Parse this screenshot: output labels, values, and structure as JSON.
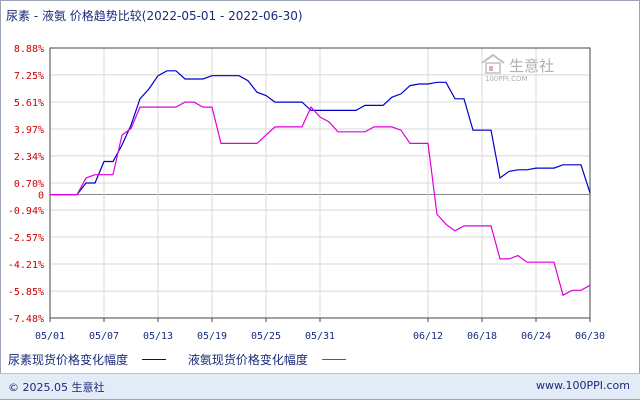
{
  "title": "尿素 - 液氨 价格趋势比较(2022-05-01 - 2022-06-30)",
  "watermark": {
    "text": "生意社",
    "sub": "100PPI.COM"
  },
  "footer": {
    "copyright": "© 2025.05 生意社",
    "site": "www.100PPI.com"
  },
  "colors": {
    "series1": "#0000cc",
    "series2": "#dd00dd",
    "grid": "#d8d8d8",
    "axis": "#444444",
    "ytick": "#cc0000"
  },
  "chart_data": {
    "type": "line",
    "title": "尿素 - 液氨 价格趋势比较(2022-05-01 - 2022-06-30)",
    "ylim": [
      -7.48,
      8.88
    ],
    "yticks": [
      "8.88%",
      "7.25%",
      "5.61%",
      "3.97%",
      "2.34%",
      "0.70%",
      "0",
      "-0.94%",
      "-2.57%",
      "-4.21%",
      "-5.85%",
      "-7.48%"
    ],
    "ytick_values": [
      8.88,
      7.25,
      5.61,
      3.97,
      2.34,
      0.7,
      0,
      -0.94,
      -2.57,
      -4.21,
      -5.85,
      -7.48
    ],
    "xticks": [
      "05/01",
      "05/07",
      "05/13",
      "05/19",
      "05/25",
      "05/31",
      "06/12",
      "06/18",
      "06/24",
      "06/30"
    ],
    "xtick_days": [
      0,
      6,
      12,
      18,
      24,
      30,
      42,
      48,
      54,
      60
    ],
    "grid": true,
    "legend_position": "bottom",
    "series": [
      {
        "name": "尿素现货价格变化幅度",
        "color": "#0000cc",
        "points": [
          [
            0,
            0
          ],
          [
            3,
            0
          ],
          [
            4,
            0.7
          ],
          [
            5,
            0.7
          ],
          [
            6,
            2.0
          ],
          [
            7,
            2.0
          ],
          [
            8,
            3.0
          ],
          [
            9,
            4.2
          ],
          [
            10,
            5.8
          ],
          [
            11,
            6.4
          ],
          [
            12,
            7.2
          ],
          [
            13,
            7.5
          ],
          [
            14,
            7.5
          ],
          [
            15,
            7.0
          ],
          [
            16,
            7.0
          ],
          [
            17,
            7.0
          ],
          [
            18,
            7.2
          ],
          [
            19,
            7.2
          ],
          [
            20,
            7.2
          ],
          [
            21,
            7.2
          ],
          [
            22,
            6.9
          ],
          [
            23,
            6.2
          ],
          [
            24,
            6.0
          ],
          [
            25,
            5.6
          ],
          [
            26,
            5.6
          ],
          [
            27,
            5.6
          ],
          [
            28,
            5.6
          ],
          [
            29,
            5.1
          ],
          [
            30,
            5.1
          ],
          [
            31,
            5.1
          ],
          [
            32,
            5.1
          ],
          [
            33,
            5.1
          ],
          [
            34,
            5.1
          ],
          [
            35,
            5.4
          ],
          [
            36,
            5.4
          ],
          [
            37,
            5.4
          ],
          [
            38,
            5.9
          ],
          [
            39,
            6.1
          ],
          [
            40,
            6.6
          ],
          [
            41,
            6.7
          ],
          [
            42,
            6.7
          ],
          [
            43,
            6.8
          ],
          [
            44,
            6.8
          ],
          [
            45,
            5.8
          ],
          [
            46,
            5.8
          ],
          [
            47,
            3.9
          ],
          [
            48,
            3.9
          ],
          [
            49,
            3.9
          ],
          [
            50,
            1.0
          ],
          [
            51,
            1.4
          ],
          [
            52,
            1.5
          ],
          [
            53,
            1.5
          ],
          [
            54,
            1.6
          ],
          [
            55,
            1.6
          ],
          [
            56,
            1.6
          ],
          [
            57,
            1.8
          ],
          [
            58,
            1.8
          ],
          [
            59,
            1.8
          ],
          [
            60,
            0.1
          ]
        ]
      },
      {
        "name": "液氨现货价格变化幅度",
        "color": "#dd00dd",
        "points": [
          [
            0,
            0
          ],
          [
            3,
            0
          ],
          [
            4,
            1.0
          ],
          [
            5,
            1.2
          ],
          [
            6,
            1.2
          ],
          [
            7,
            1.2
          ],
          [
            8,
            3.6
          ],
          [
            9,
            4.0
          ],
          [
            10,
            5.3
          ],
          [
            11,
            5.3
          ],
          [
            12,
            5.3
          ],
          [
            13,
            5.3
          ],
          [
            14,
            5.3
          ],
          [
            15,
            5.6
          ],
          [
            16,
            5.6
          ],
          [
            17,
            5.3
          ],
          [
            18,
            5.3
          ],
          [
            19,
            3.1
          ],
          [
            20,
            3.1
          ],
          [
            21,
            3.1
          ],
          [
            22,
            3.1
          ],
          [
            23,
            3.1
          ],
          [
            24,
            3.6
          ],
          [
            25,
            4.1
          ],
          [
            26,
            4.1
          ],
          [
            27,
            4.1
          ],
          [
            28,
            4.1
          ],
          [
            29,
            5.3
          ],
          [
            30,
            4.7
          ],
          [
            31,
            4.4
          ],
          [
            32,
            3.8
          ],
          [
            33,
            3.8
          ],
          [
            34,
            3.8
          ],
          [
            35,
            3.8
          ],
          [
            36,
            4.1
          ],
          [
            37,
            4.1
          ],
          [
            38,
            4.1
          ],
          [
            39,
            3.9
          ],
          [
            40,
            3.1
          ],
          [
            41,
            3.1
          ],
          [
            42,
            3.1
          ],
          [
            43,
            -1.2
          ],
          [
            44,
            -1.8
          ],
          [
            45,
            -2.2
          ],
          [
            46,
            -1.9
          ],
          [
            47,
            -1.9
          ],
          [
            48,
            -1.9
          ],
          [
            49,
            -1.9
          ],
          [
            50,
            -3.9
          ],
          [
            51,
            -3.9
          ],
          [
            52,
            -3.7
          ],
          [
            53,
            -4.1
          ],
          [
            54,
            -4.1
          ],
          [
            55,
            -4.1
          ],
          [
            56,
            -4.1
          ],
          [
            57,
            -6.1
          ],
          [
            58,
            -5.8
          ],
          [
            59,
            -5.8
          ],
          [
            60,
            -5.5
          ]
        ]
      }
    ]
  }
}
